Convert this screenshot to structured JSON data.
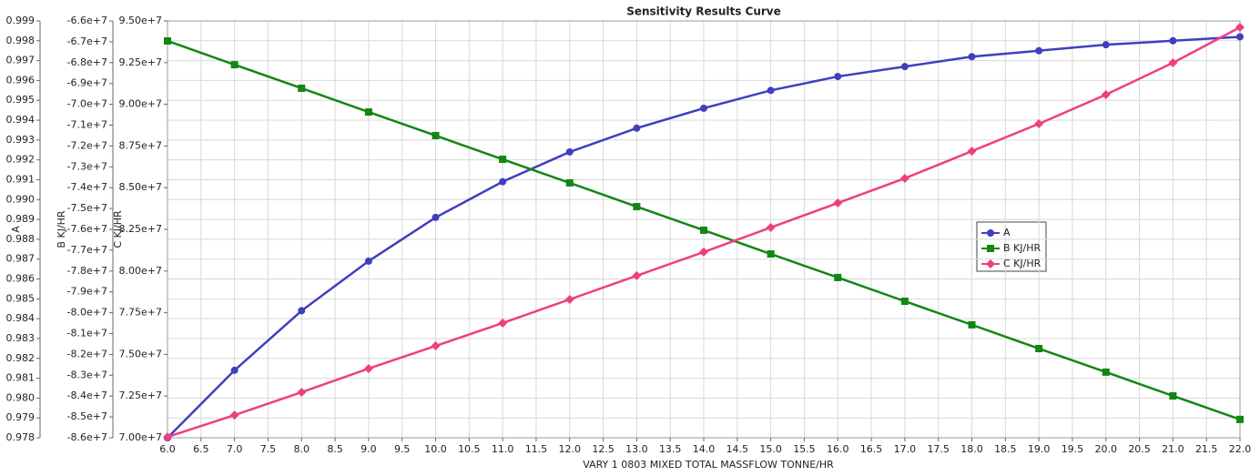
{
  "chart_data": {
    "type": "line",
    "title": "Sensitivity Results Curve",
    "x_label": "VARY  1 0803 MIXED TOTAL MASSFLOW TONNE/HR",
    "y_label": "A",
    "y2_label": "B KJ/HR",
    "y3_label": "C KJ/HR",
    "x": [
      6,
      7,
      8,
      9,
      10,
      11,
      12,
      13,
      14,
      15,
      16,
      17,
      18,
      19,
      20,
      21,
      22
    ],
    "xlim": [
      6,
      22
    ],
    "xticks": [
      {
        "value": 6,
        "label": "6.0"
      },
      6.5,
      {
        "value": 7,
        "label": "7.0"
      },
      7.5,
      {
        "value": 8,
        "label": "8.0"
      },
      8.5,
      {
        "value": 9,
        "label": "9.0"
      },
      9.5,
      {
        "value": 10,
        "label": "10.0"
      },
      10.5,
      {
        "value": 11,
        "label": "11.0"
      },
      11.5,
      {
        "value": 12,
        "label": "12.0"
      },
      12.5,
      {
        "value": 13,
        "label": "13.0"
      },
      13.5,
      {
        "value": 14,
        "label": "14.0"
      },
      14.5,
      {
        "value": 15,
        "label": "15.0"
      },
      15.5,
      {
        "value": 16,
        "label": "16.0"
      },
      16.5,
      {
        "value": 17,
        "label": "17.0"
      },
      17.5,
      {
        "value": 18,
        "label": "18.0"
      },
      18.5,
      {
        "value": 19,
        "label": "19.0"
      },
      19.5,
      {
        "value": 20,
        "label": "20.0"
      },
      20.5,
      {
        "value": 21,
        "label": "21.0"
      },
      21.5,
      {
        "value": 22,
        "label": "22.0"
      }
    ],
    "ylim": [
      0.978,
      0.999
    ],
    "yticks": [
      {
        "value": 0.978,
        "label": "0.978"
      },
      0.979,
      {
        "value": 0.98,
        "label": "0.980"
      },
      0.981,
      0.982,
      0.983,
      0.984,
      0.985,
      0.986,
      0.987,
      0.988,
      0.989,
      {
        "value": 0.99,
        "label": "0.990"
      },
      0.991,
      0.992,
      0.993,
      0.994,
      0.995,
      0.996,
      0.997,
      0.998,
      0.999
    ],
    "y2lim": [
      -86000000,
      -66000000
    ],
    "y2ticks": [
      {
        "value": -86000000,
        "label": "-8.6e+7"
      },
      {
        "value": -85000000,
        "label": "-8.5e+7"
      },
      {
        "value": -84000000,
        "label": "-8.4e+7"
      },
      {
        "value": -83000000,
        "label": "-8.3e+7"
      },
      {
        "value": -82000000,
        "label": "-8.2e+7"
      },
      {
        "value": -81000000,
        "label": "-8.1e+7"
      },
      {
        "value": -80000000,
        "label": "-8.0e+7"
      },
      {
        "value": -79000000,
        "label": "-7.9e+7"
      },
      {
        "value": -78000000,
        "label": "-7.8e+7"
      },
      {
        "value": -77000000,
        "label": "-7.7e+7"
      },
      {
        "value": -76000000,
        "label": "-7.6e+7"
      },
      {
        "value": -75000000,
        "label": "-7.5e+7"
      },
      {
        "value": -74000000,
        "label": "-7.4e+7"
      },
      {
        "value": -73000000,
        "label": "-7.3e+7"
      },
      {
        "value": -72000000,
        "label": "-7.2e+7"
      },
      {
        "value": -71000000,
        "label": "-7.1e+7"
      },
      {
        "value": -70000000,
        "label": "-7.0e+7"
      },
      {
        "value": -69000000,
        "label": "-6.9e+7"
      },
      {
        "value": -68000000,
        "label": "-6.8e+7"
      },
      {
        "value": -67000000,
        "label": "-6.7e+7"
      },
      {
        "value": -66000000,
        "label": "-6.6e+7"
      }
    ],
    "y3lim": [
      70000000,
      95000000
    ],
    "y3ticks": [
      {
        "value": 70000000,
        "label": "7.00e+7"
      },
      {
        "value": 72500000,
        "label": "7.25e+7"
      },
      {
        "value": 75000000,
        "label": "7.50e+7"
      },
      {
        "value": 77500000,
        "label": "7.75e+7"
      },
      {
        "value": 80000000,
        "label": "8.00e+7"
      },
      {
        "value": 82500000,
        "label": "8.25e+7"
      },
      {
        "value": 85000000,
        "label": "8.50e+7"
      },
      {
        "value": 87500000,
        "label": "8.75e+7"
      },
      {
        "value": 90000000,
        "label": "9.00e+7"
      },
      {
        "value": 92500000,
        "label": "9.25e+7"
      },
      {
        "value": 95000000,
        "label": "9.50e+7"
      }
    ],
    "grid": true,
    "series": [
      {
        "name": "A",
        "color": "#3f3fbf",
        "marker": "circle",
        "axis": "y",
        "values": [
          0.978,
          0.9814,
          0.9844,
          0.9869,
          0.9891,
          0.9909,
          0.9924,
          0.9936,
          0.9946,
          0.9955,
          0.9962,
          0.9967,
          0.9972,
          0.9975,
          0.9978,
          0.998,
          0.9982
        ]
      },
      {
        "name": "B KJ/HR",
        "color": "#138613",
        "marker": "square",
        "axis": "y2",
        "values": [
          -66960000,
          -68100000,
          -69230000,
          -70370000,
          -71500000,
          -72640000,
          -73770000,
          -74910000,
          -76040000,
          -77180000,
          -78310000,
          -79450000,
          -80580000,
          -81720000,
          -82850000,
          -83990000,
          -85120000
        ]
      },
      {
        "name": "C KJ/HR",
        "color": "#ee3f7f",
        "marker": "diamond",
        "axis": "y3",
        "values": [
          70050000,
          71360000,
          72730000,
          74150000,
          75510000,
          76880000,
          78300000,
          79720000,
          81140000,
          82610000,
          84080000,
          85560000,
          87190000,
          88830000,
          90580000,
          92490000,
          94620000
        ]
      }
    ]
  }
}
